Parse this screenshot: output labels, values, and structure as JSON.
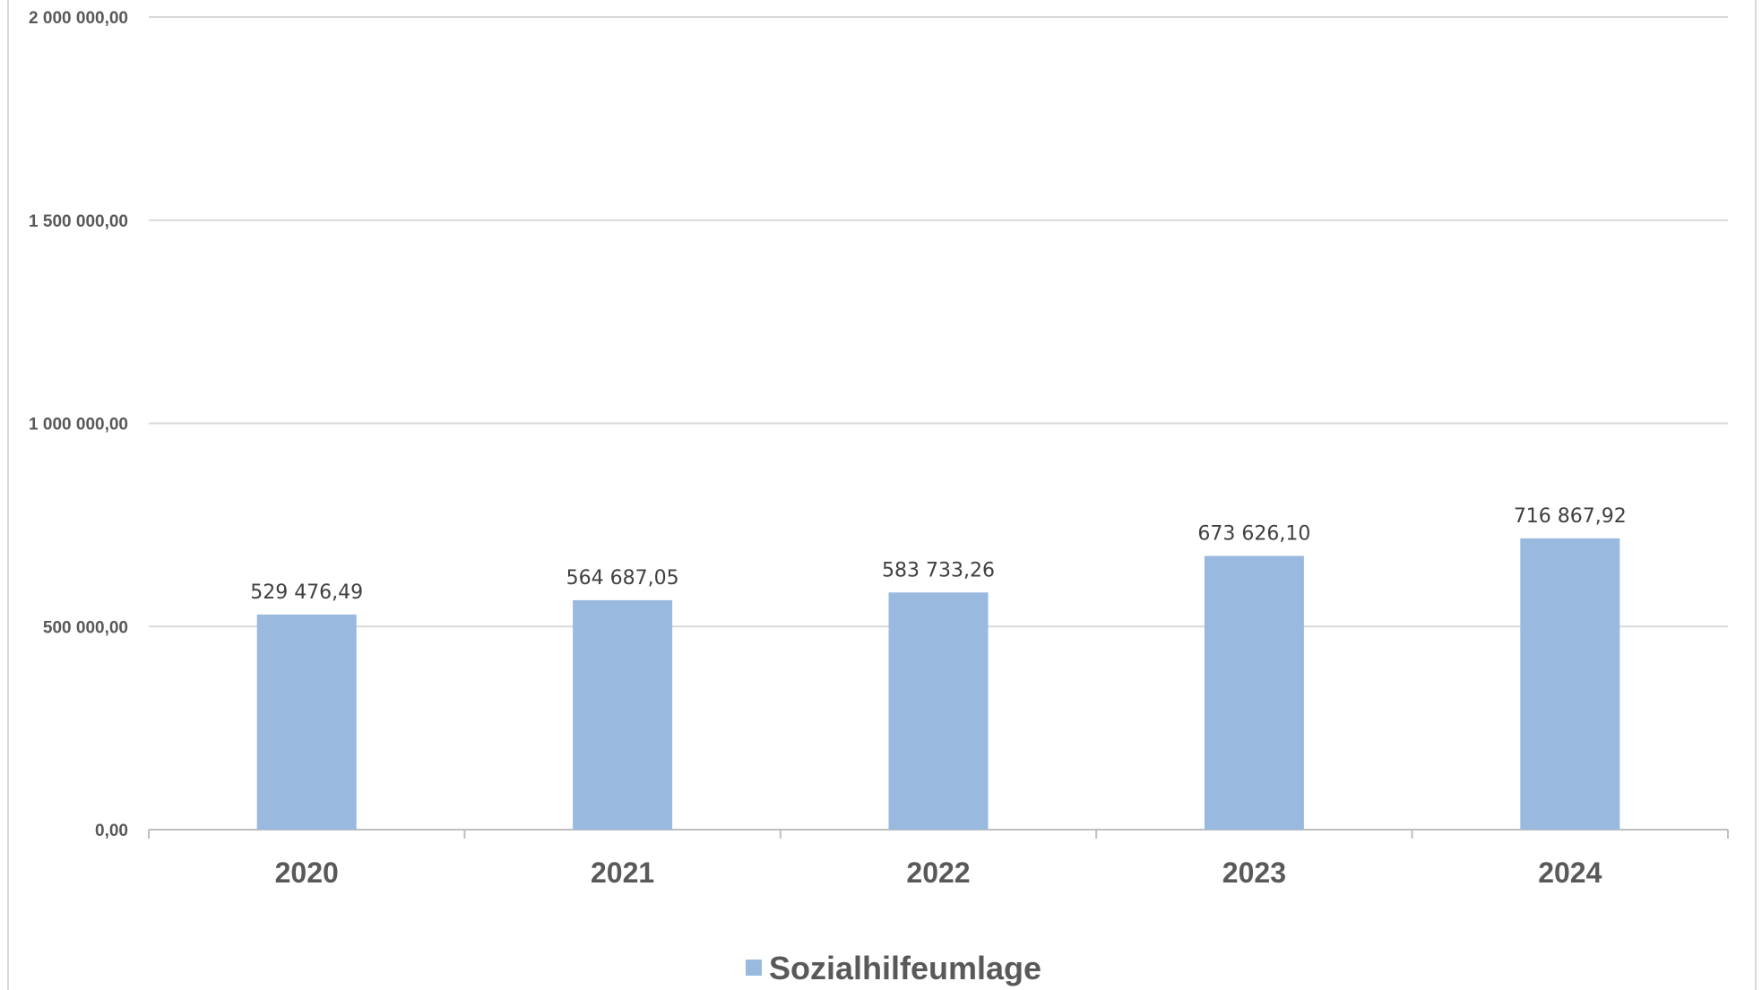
{
  "chart_data": {
    "type": "bar",
    "categories": [
      "2020",
      "2021",
      "2022",
      "2023",
      "2024"
    ],
    "series": [
      {
        "name": "Sozialhilfeumlage",
        "values": [
          529476.49,
          564687.05,
          583733.26,
          673626.1,
          716867.92
        ],
        "labels": [
          "529 476,49",
          "564 687,05",
          "583 733,26",
          "673 626,10",
          "716 867,92"
        ],
        "color": "#9ab9df"
      }
    ],
    "ylim": [
      0,
      2000000
    ],
    "yticks": [
      {
        "value": 0,
        "label": "0,00"
      },
      {
        "value": 500000,
        "label": "500 000,00"
      },
      {
        "value": 1000000,
        "label": "1 000 000,00"
      },
      {
        "value": 1500000,
        "label": "1 500 000,00"
      },
      {
        "value": 2000000,
        "label": "2 000 000,00"
      }
    ],
    "grid": true,
    "legend": "bottom-center",
    "gridline_color": "#d9d9d9"
  }
}
